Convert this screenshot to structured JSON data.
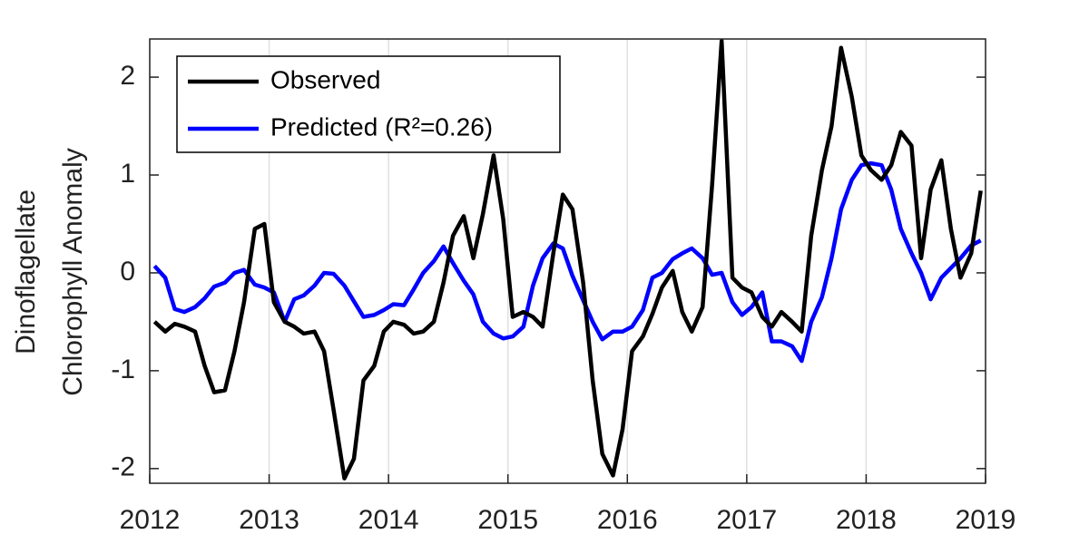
{
  "chart_data": {
    "type": "line",
    "ylabel": [
      "Dinoflagellate",
      "Chlorophyll Anomaly"
    ],
    "x": [
      2012.04,
      2012.13,
      2012.21,
      2012.29,
      2012.38,
      2012.46,
      2012.54,
      2012.63,
      2012.71,
      2012.79,
      2012.88,
      2012.96,
      2013.04,
      2013.13,
      2013.21,
      2013.29,
      2013.38,
      2013.46,
      2013.54,
      2013.63,
      2013.71,
      2013.79,
      2013.88,
      2013.96,
      2014.04,
      2014.13,
      2014.21,
      2014.29,
      2014.38,
      2014.46,
      2014.54,
      2014.63,
      2014.71,
      2014.79,
      2014.88,
      2014.96,
      2015.04,
      2015.13,
      2015.21,
      2015.29,
      2015.38,
      2015.46,
      2015.54,
      2015.63,
      2015.71,
      2015.79,
      2015.88,
      2015.96,
      2016.04,
      2016.13,
      2016.21,
      2016.29,
      2016.38,
      2016.46,
      2016.54,
      2016.63,
      2016.71,
      2016.79,
      2016.88,
      2016.96,
      2017.04,
      2017.13,
      2017.21,
      2017.29,
      2017.38,
      2017.46,
      2017.54,
      2017.63,
      2017.71,
      2017.79,
      2017.88,
      2017.96,
      2018.04,
      2018.13,
      2018.21,
      2018.29,
      2018.38,
      2018.46,
      2018.54,
      2018.63,
      2018.71,
      2018.79,
      2018.88,
      2018.96
    ],
    "series": [
      {
        "name": "Observed",
        "color": "#000000",
        "values": [
          -0.5,
          -0.6,
          -0.52,
          -0.55,
          -0.6,
          -0.95,
          -1.22,
          -1.2,
          -0.8,
          -0.3,
          0.45,
          0.5,
          -0.3,
          -0.5,
          -0.55,
          -0.62,
          -0.6,
          -0.8,
          -1.4,
          -2.1,
          -1.9,
          -1.1,
          -0.95,
          -0.6,
          -0.5,
          -0.53,
          -0.62,
          -0.6,
          -0.5,
          -0.1,
          0.38,
          0.58,
          0.15,
          0.6,
          1.2,
          0.55,
          -0.45,
          -0.4,
          -0.45,
          -0.55,
          0.2,
          0.8,
          0.65,
          -0.1,
          -1.1,
          -1.85,
          -2.07,
          -1.6,
          -0.8,
          -0.65,
          -0.42,
          -0.15,
          0.02,
          -0.4,
          -0.6,
          -0.35,
          0.9,
          2.37,
          -0.05,
          -0.15,
          -0.2,
          -0.45,
          -0.55,
          -0.4,
          -0.5,
          -0.6,
          0.38,
          1.05,
          1.5,
          2.3,
          1.8,
          1.2,
          1.05,
          0.95,
          1.1,
          1.44,
          1.3,
          0.15,
          0.85,
          1.15,
          0.45,
          -0.05,
          0.2,
          0.84
        ]
      },
      {
        "name": "Predicted (R²=0.26)",
        "color": "#0000ff",
        "values": [
          0.07,
          -0.05,
          -0.37,
          -0.4,
          -0.35,
          -0.26,
          -0.14,
          -0.1,
          0.0,
          0.03,
          -0.12,
          -0.15,
          -0.2,
          -0.5,
          -0.27,
          -0.23,
          -0.13,
          0.0,
          -0.01,
          -0.13,
          -0.29,
          -0.45,
          -0.43,
          -0.38,
          -0.32,
          -0.33,
          -0.17,
          0.0,
          0.12,
          0.27,
          0.1,
          -0.08,
          -0.22,
          -0.5,
          -0.62,
          -0.67,
          -0.65,
          -0.55,
          -0.13,
          0.15,
          0.3,
          0.25,
          -0.03,
          -0.28,
          -0.5,
          -0.68,
          -0.6,
          -0.6,
          -0.55,
          -0.38,
          -0.05,
          0.0,
          0.14,
          0.2,
          0.25,
          0.15,
          -0.02,
          0.0,
          -0.3,
          -0.43,
          -0.35,
          -0.2,
          -0.7,
          -0.7,
          -0.75,
          -0.9,
          -0.5,
          -0.25,
          0.15,
          0.65,
          0.95,
          1.1,
          1.12,
          1.1,
          0.85,
          0.45,
          0.2,
          0.0,
          -0.27,
          -0.05,
          0.05,
          0.15,
          0.28,
          0.33
        ]
      }
    ],
    "xlim": [
      2012,
      2019
    ],
    "xticks": [
      2012,
      2013,
      2014,
      2015,
      2016,
      2017,
      2018,
      2019
    ],
    "ylim": [
      -2.15,
      2.39
    ],
    "yticks": [
      -2,
      -1,
      0,
      1,
      2
    ],
    "xgrid": true,
    "legend": "upper left"
  }
}
